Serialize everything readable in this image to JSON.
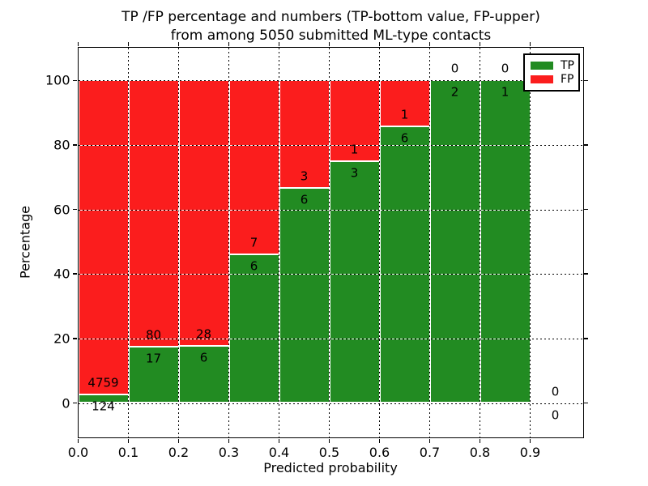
{
  "chart_data": {
    "type": "bar",
    "stacked": true,
    "unit": "percent",
    "title_line1": "TP /FP percentage and numbers (TP-bottom value, FP-upper)",
    "title_line2": "from among 5050 submitted ML-type contacts",
    "xlabel": "Predicted probability",
    "ylabel": "Percentage",
    "x_tick_labels": [
      "0.0",
      "0.1",
      "0.2",
      "0.3",
      "0.4",
      "0.5",
      "0.6",
      "0.7",
      "0.8",
      "0.9"
    ],
    "y_tick_values": [
      0,
      20,
      40,
      60,
      80,
      100
    ],
    "xlim": [
      0.0,
      1.005
    ],
    "ylim": [
      -10.5,
      110.5
    ],
    "grid": true,
    "bin_width": 0.1,
    "categories": [
      "0.0-0.1",
      "0.1-0.2",
      "0.2-0.3",
      "0.3-0.4",
      "0.4-0.5",
      "0.5-0.6",
      "0.6-0.7",
      "0.7-0.8",
      "0.8-0.9",
      "0.9-1.0"
    ],
    "series": [
      {
        "name": "TP",
        "role": "bottom",
        "color": "#228B22",
        "counts": [
          124,
          17,
          6,
          6,
          6,
          3,
          6,
          2,
          1,
          0
        ]
      },
      {
        "name": "FP",
        "role": "upper",
        "color": "#FB1D1D",
        "counts": [
          4759,
          80,
          28,
          7,
          3,
          1,
          1,
          0,
          0,
          0
        ]
      }
    ],
    "note": "bar heights are TP and FP counts as percentage of each bin total; numeric labels show raw counts (TP below boundary, FP above)",
    "legend": {
      "position": "upper-right",
      "entries": [
        {
          "label": "TP",
          "color": "#228B22"
        },
        {
          "label": "FP",
          "color": "#FB1D1D"
        }
      ]
    },
    "colors": {
      "tp": "#228B22",
      "fp": "#FB1D1D",
      "grid": "#000000",
      "background": "#ffffff"
    }
  }
}
